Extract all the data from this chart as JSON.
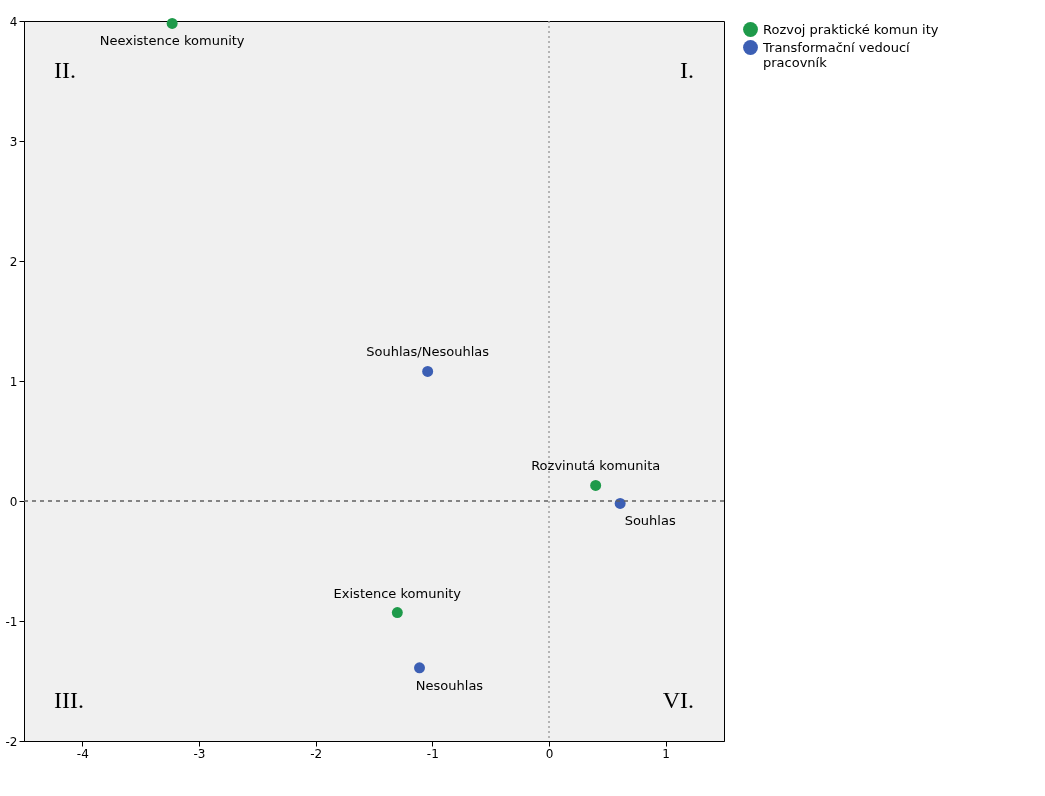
{
  "chart_data": {
    "type": "scatter",
    "xlim": [
      -4.5,
      1.5
    ],
    "ylim": [
      -2,
      4
    ],
    "xticks": [
      -4,
      -3,
      -2,
      -1,
      0,
      1
    ],
    "yticks": [
      -2,
      -1,
      0,
      1,
      2,
      3,
      4
    ],
    "series": [
      {
        "name": "Rozvoj praktické komun ity",
        "color": "#1e9a4a",
        "x": [
          -3.23,
          -1.3,
          0.4
        ],
        "values": [
          3.98,
          -0.93,
          0.13
        ]
      },
      {
        "name": "Transformační vedoucí pracovník",
        "color": "#3c5fb4",
        "x": [
          -1.04,
          -1.11,
          0.61
        ],
        "values": [
          1.08,
          -1.39,
          -0.02
        ]
      }
    ],
    "annotations": [
      {
        "text": "Neexistence komunity",
        "x": -3.23,
        "y": 3.98
      },
      {
        "text": "Existence komunity",
        "x": -1.3,
        "y": -0.93
      },
      {
        "text": "Rozvinutá komunita",
        "x": 0.4,
        "y": 0.13
      },
      {
        "text": "Souhlas/Nesouhlas",
        "x": -1.04,
        "y": 1.08
      },
      {
        "text": "Nesouhlas",
        "x": -1.11,
        "y": -1.39
      },
      {
        "text": "Souhlas",
        "x": 0.61,
        "y": -0.02
      },
      "II.",
      "I.",
      "III.",
      "VI."
    ],
    "ref_lines": [
      {
        "axis": "x",
        "value": 0,
        "color": "#a0a0a0",
        "line_style": "dotted"
      },
      {
        "axis": "y",
        "value": 0,
        "color": "#606060",
        "line_style": "dashed"
      }
    ],
    "marker": "circle",
    "grid": false,
    "legend": "top right"
  }
}
